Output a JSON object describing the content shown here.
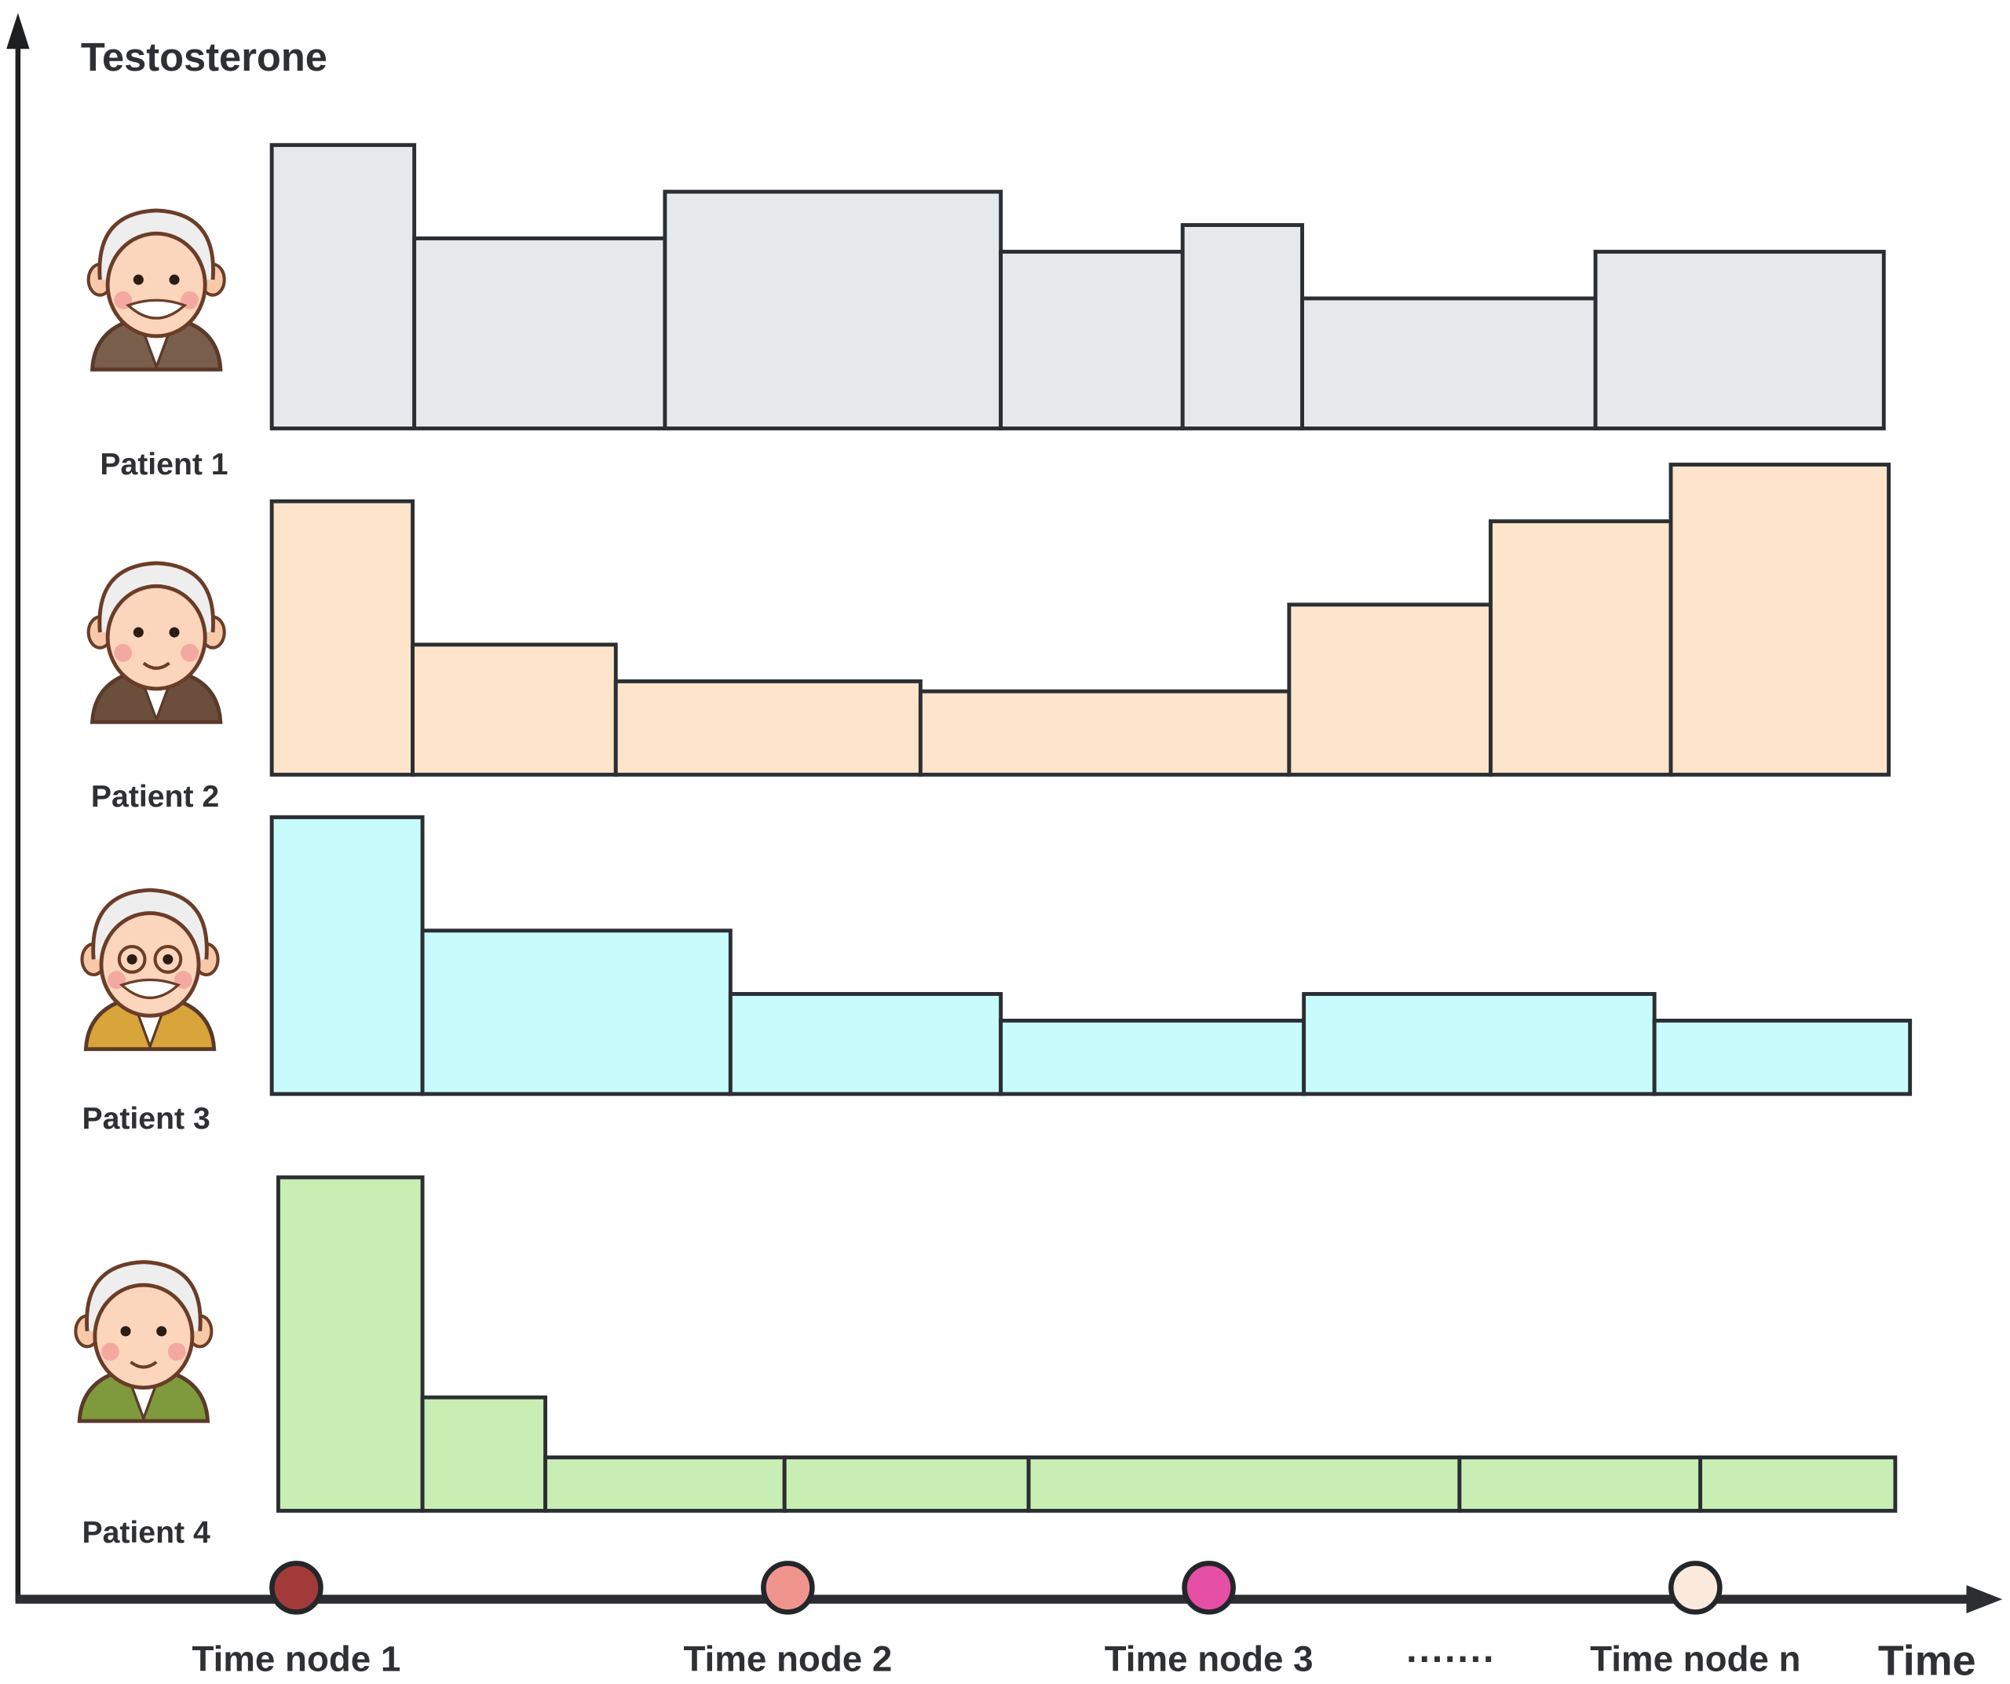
{
  "title": "Testosterone",
  "x_axis_label": "Time",
  "ellipsis": "·······",
  "time_nodes": [
    {
      "label": "Time node 1",
      "t": 1.5,
      "color": "#a33a3a"
    },
    {
      "label": "Time node 2",
      "t": 31.5,
      "color": "#f0948e"
    },
    {
      "label": "Time node 3",
      "t": 57.2,
      "color": "#e64fa6"
    },
    {
      "label": "Time node n",
      "t": 86.9,
      "color": "#fbeadb"
    }
  ],
  "chart_data": {
    "type": "bar",
    "title": "Testosterone",
    "xlabel": "Time",
    "ylabel": "Testosterone",
    "time_range": [
      0,
      100
    ],
    "value_range": [
      0,
      100
    ],
    "series": [
      {
        "name": "Patient 1",
        "color": "#e6e9ec",
        "boundaries": [
          0,
          8.7,
          24.0,
          44.5,
          55.6,
          62.9,
          80.8,
          98.4
        ],
        "values": [
          85,
          57,
          71,
          53,
          61,
          39,
          53
        ]
      },
      {
        "name": "Patient 2",
        "color": "#fde4cb",
        "boundaries": [
          0,
          8.6,
          21.0,
          39.6,
          62.1,
          74.4,
          85.4,
          98.7
        ],
        "values": [
          82,
          39,
          28,
          25,
          51,
          76,
          93
        ]
      },
      {
        "name": "Patient 3",
        "color": "#c8fcfc",
        "boundaries": [
          0,
          9.2,
          28.0,
          44.5,
          63.0,
          84.4,
          100
        ],
        "values": [
          83,
          49,
          30,
          22,
          30,
          22
        ]
      },
      {
        "name": "Patient 4",
        "color": "#c9eeb4",
        "boundaries": [
          0.4,
          9.2,
          16.7,
          31.3,
          46.2,
          72.5,
          87.2,
          99.1
        ],
        "values": [
          100,
          34,
          16,
          16,
          16,
          16,
          16
        ]
      }
    ]
  },
  "avatars": [
    {
      "name": "bearded-elder-icon",
      "jacket": "#7a5e4c"
    },
    {
      "name": "smiling-elder-icon",
      "jacket": "#6b4f3c"
    },
    {
      "name": "glasses-elder-icon",
      "jacket": "#d9a43a"
    },
    {
      "name": "elder-woman-icon",
      "jacket": "#7f9a3c"
    }
  ]
}
